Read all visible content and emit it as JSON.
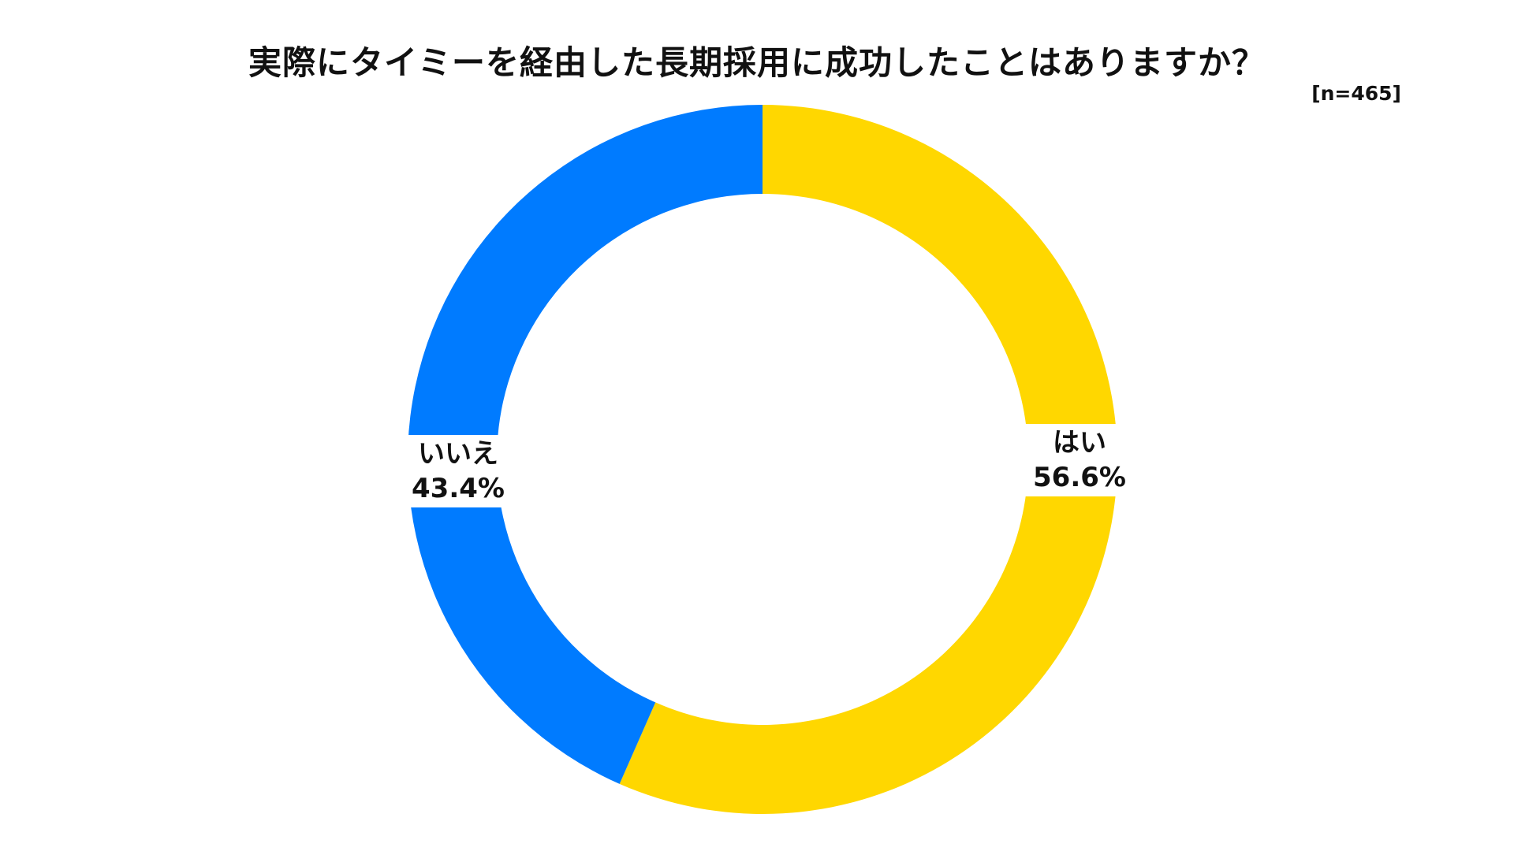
{
  "chart_data": {
    "type": "pie",
    "title": "実際にタイミーを経由した長期採用に成功したことはありますか？",
    "sample_size": "[n=465]",
    "donut": true,
    "legend": "none",
    "slices": [
      {
        "label": "はい",
        "value": 56.6,
        "value_label": "56.6%",
        "color": "#FFD700"
      },
      {
        "label": "いいえ",
        "value": 43.4,
        "value_label": "43.4%",
        "color": "#007BFF"
      }
    ]
  }
}
